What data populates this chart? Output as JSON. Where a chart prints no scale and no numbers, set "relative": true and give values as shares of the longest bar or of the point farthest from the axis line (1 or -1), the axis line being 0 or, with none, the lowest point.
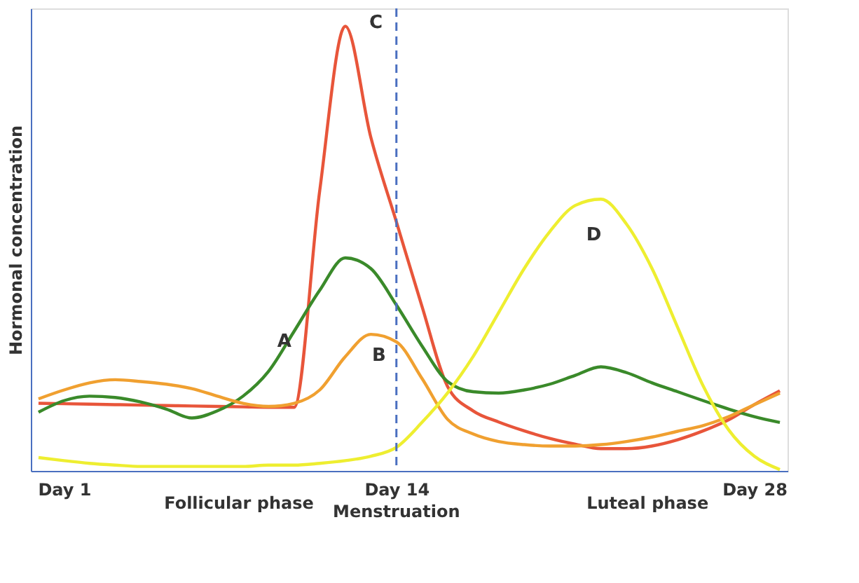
{
  "chart_data": {
    "type": "line",
    "relative": true,
    "ylabel": "Hormonal concentration",
    "categories": [
      null,
      "Day 1",
      null,
      null,
      null,
      null,
      null,
      null,
      null,
      null,
      null,
      null,
      null,
      null,
      "Day 14",
      null,
      null,
      null,
      null,
      null,
      null,
      null,
      null,
      null,
      null,
      null,
      null,
      null,
      "Day 28",
      null
    ],
    "series": [
      {
        "color": "#e8553a",
        "values": [
          0.152,
          0.151,
          0.15,
          0.149,
          0.148,
          0.147,
          0.146,
          0.145,
          0.144,
          0.143,
          0.143,
          0.63,
          1.0,
          0.75,
          0.56,
          0.37,
          0.19,
          0.135,
          0.11,
          0.09,
          0.073,
          0.06,
          0.05,
          0.05,
          0.056,
          0.07,
          0.09,
          0.115,
          0.149,
          0.18
        ]
      },
      {
        "color": "#3a8a2a",
        "values": [
          0.132,
          0.158,
          0.168,
          0.165,
          0.155,
          0.139,
          0.119,
          0.135,
          0.168,
          0.224,
          0.314,
          0.406,
          0.479,
          0.455,
          0.373,
          0.281,
          0.201,
          0.178,
          0.175,
          0.182,
          0.195,
          0.215,
          0.234,
          0.221,
          0.198,
          0.178,
          0.158,
          0.139,
          0.122,
          0.109
        ]
      },
      {
        "color": "#f0a030",
        "values": [
          0.162,
          0.182,
          0.198,
          0.205,
          0.201,
          0.195,
          0.185,
          0.168,
          0.152,
          0.145,
          0.152,
          0.182,
          0.257,
          0.307,
          0.29,
          0.208,
          0.116,
          0.083,
          0.066,
          0.059,
          0.056,
          0.056,
          0.059,
          0.066,
          0.076,
          0.089,
          0.102,
          0.122,
          0.149,
          0.175
        ]
      },
      {
        "color": "#eeee30",
        "values": [
          0.03,
          0.023,
          0.017,
          0.013,
          0.01,
          0.01,
          0.01,
          0.01,
          0.01,
          0.013,
          0.013,
          0.017,
          0.023,
          0.033,
          0.053,
          0.109,
          0.175,
          0.257,
          0.356,
          0.455,
          0.538,
          0.597,
          0.611,
          0.555,
          0.455,
          0.323,
          0.191,
          0.092,
          0.033,
          0.003
        ]
      }
    ],
    "annotations": [
      "A",
      "B",
      "C",
      "D",
      "Follicular phase",
      "Luteal phase"
    ],
    "ref_lines": [
      {
        "axis": "x",
        "value": "Day 14",
        "label": "Menstruation",
        "color": "#4a6fc0",
        "line_style": "dashed"
      }
    ],
    "grid": false,
    "marker": "none",
    "line_style": "solid"
  }
}
